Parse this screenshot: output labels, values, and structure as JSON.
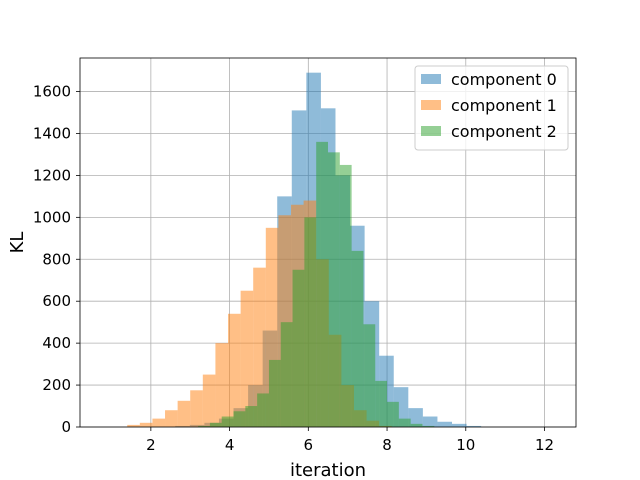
{
  "chart_data": {
    "type": "histogram",
    "xlabel": "iteration",
    "ylabel": "KL",
    "xlim": [
      0.2,
      12.8
    ],
    "ylim": [
      0,
      1760
    ],
    "xticks": [
      2,
      4,
      6,
      8,
      10,
      12
    ],
    "yticks": [
      0,
      200,
      400,
      600,
      800,
      1000,
      1200,
      1400,
      1600
    ],
    "grid": true,
    "legend_position": "top-right",
    "series": [
      {
        "name": "component 0",
        "color": "#1f77b4",
        "alpha": 0.5,
        "bins": [
          [
            2.62,
            2.99,
            5
          ],
          [
            2.99,
            3.36,
            10
          ],
          [
            3.36,
            3.73,
            20
          ],
          [
            3.73,
            4.1,
            40
          ],
          [
            4.1,
            4.47,
            90
          ],
          [
            4.47,
            4.84,
            200
          ],
          [
            4.84,
            5.21,
            460
          ],
          [
            5.21,
            5.58,
            1100
          ],
          [
            5.58,
            5.95,
            1510
          ],
          [
            5.95,
            6.32,
            1690
          ],
          [
            6.32,
            6.69,
            1520
          ],
          [
            6.69,
            7.06,
            1200
          ],
          [
            7.06,
            7.43,
            960
          ],
          [
            7.43,
            7.8,
            600
          ],
          [
            7.8,
            8.17,
            340
          ],
          [
            8.17,
            8.54,
            190
          ],
          [
            8.54,
            8.91,
            90
          ],
          [
            8.91,
            9.28,
            50
          ],
          [
            9.28,
            9.65,
            25
          ],
          [
            9.65,
            10.02,
            15
          ],
          [
            10.02,
            10.39,
            5
          ]
        ]
      },
      {
        "name": "component 1",
        "color": "#ff7f0e",
        "alpha": 0.5,
        "bins": [
          [
            1.4,
            1.72,
            10
          ],
          [
            1.72,
            2.04,
            20
          ],
          [
            2.04,
            2.36,
            40
          ],
          [
            2.36,
            2.68,
            80
          ],
          [
            2.68,
            3.0,
            125
          ],
          [
            3.0,
            3.32,
            175
          ],
          [
            3.32,
            3.64,
            250
          ],
          [
            3.64,
            3.96,
            400
          ],
          [
            3.96,
            4.28,
            540
          ],
          [
            4.28,
            4.6,
            650
          ],
          [
            4.6,
            4.92,
            760
          ],
          [
            4.92,
            5.24,
            950
          ],
          [
            5.24,
            5.56,
            1010
          ],
          [
            5.56,
            5.88,
            1060
          ],
          [
            5.88,
            6.2,
            1080
          ],
          [
            6.2,
            6.52,
            800
          ],
          [
            6.52,
            6.84,
            440
          ],
          [
            6.84,
            7.16,
            200
          ],
          [
            7.16,
            7.48,
            80
          ],
          [
            7.48,
            7.8,
            30
          ],
          [
            7.8,
            8.12,
            5
          ]
        ]
      },
      {
        "name": "component 2",
        "color": "#2ca02c",
        "alpha": 0.5,
        "bins": [
          [
            3.2,
            3.5,
            5
          ],
          [
            3.5,
            3.8,
            20
          ],
          [
            3.8,
            4.1,
            50
          ],
          [
            4.1,
            4.4,
            75
          ],
          [
            4.4,
            4.7,
            100
          ],
          [
            4.7,
            5.0,
            160
          ],
          [
            5.0,
            5.3,
            320
          ],
          [
            5.3,
            5.6,
            500
          ],
          [
            5.6,
            5.9,
            750
          ],
          [
            5.9,
            6.2,
            1000
          ],
          [
            6.2,
            6.5,
            1360
          ],
          [
            6.5,
            6.8,
            1310
          ],
          [
            6.8,
            7.1,
            1250
          ],
          [
            7.1,
            7.4,
            840
          ],
          [
            7.4,
            7.7,
            490
          ],
          [
            7.7,
            8.0,
            220
          ],
          [
            8.0,
            8.3,
            120
          ],
          [
            8.3,
            8.6,
            40
          ],
          [
            8.6,
            8.9,
            15
          ],
          [
            8.9,
            9.2,
            5
          ]
        ]
      }
    ]
  }
}
